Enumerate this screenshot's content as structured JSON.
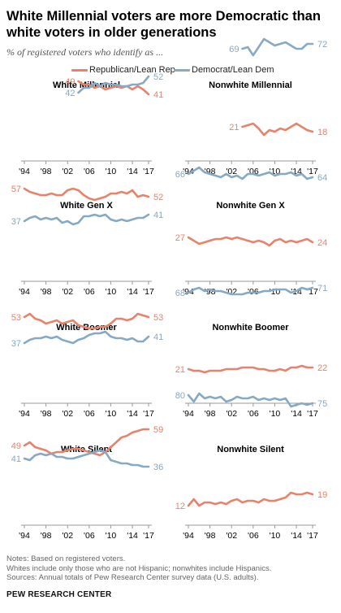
{
  "title": "White Millennial voters are more Democratic than white voters in older generations",
  "subtitle": "% of registered voters who identify as ...",
  "legend": {
    "rep_label": "Republican/Lean Rep",
    "dem_label": "Democrat/Lean Dem"
  },
  "colors": {
    "rep": "#e8836b",
    "dem": "#86a9c6",
    "axis": "#999999",
    "tick_text": "#000000"
  },
  "notes": [
    "Notes: Based on registered voters.",
    "Whites include only those who are not Hispanic; nonwhites include Hispanics.",
    "Sources: Annual totals of Pew Research Center survey data (U.S. adults)."
  ],
  "source_org": "PEW RESEARCH CENTER",
  "x_tick_labels": [
    "'94",
    "'98",
    "'02",
    "'06",
    "'10",
    "'14",
    "'17"
  ],
  "chart_data": [
    {
      "type": "line",
      "title": "White Millennial",
      "x": [
        2004,
        2005,
        2006,
        2007,
        2008,
        2009,
        2010,
        2011,
        2012,
        2013,
        2014,
        2015,
        2016,
        2017
      ],
      "xlim": [
        1994,
        2017
      ],
      "series": [
        {
          "name": "Republican/Lean Rep",
          "values": [
            49,
            47,
            47,
            45,
            46,
            44,
            45,
            46,
            45,
            46,
            44,
            46,
            44,
            41
          ],
          "start_label": "49",
          "end_label": "41"
        },
        {
          "name": "Democrat/Lean Dem",
          "values": [
            42,
            45,
            45,
            48,
            46,
            48,
            47,
            47,
            46,
            46,
            47,
            47,
            48,
            52
          ],
          "start_label": "42",
          "end_label": "52"
        }
      ]
    },
    {
      "type": "line",
      "title": "Nonwhite Millennial",
      "x": [
        2004,
        2005,
        2006,
        2007,
        2008,
        2009,
        2010,
        2011,
        2012,
        2013,
        2014,
        2015,
        2016,
        2017
      ],
      "xlim": [
        1994,
        2017
      ],
      "series": [
        {
          "name": "Republican/Lean Rep",
          "values": [
            21,
            22,
            23,
            20,
            16,
            19,
            18,
            20,
            19,
            21,
            23,
            21,
            19,
            18
          ],
          "start_label": "21",
          "end_label": "18"
        },
        {
          "name": "Democrat/Lean Dem",
          "values": [
            69,
            70,
            65,
            70,
            75,
            73,
            71,
            72,
            73,
            71,
            69,
            69,
            72,
            72
          ],
          "start_label": "69",
          "end_label": "72"
        }
      ]
    },
    {
      "type": "line",
      "title": "White Gen X",
      "x": [
        1994,
        1995,
        1996,
        1997,
        1998,
        1999,
        2000,
        2001,
        2002,
        2003,
        2004,
        2005,
        2006,
        2007,
        2008,
        2009,
        2010,
        2011,
        2012,
        2013,
        2014,
        2015,
        2016,
        2017
      ],
      "xlim": [
        1994,
        2017
      ],
      "series": [
        {
          "name": "Republican/Lean Rep",
          "values": [
            57,
            55,
            54,
            53,
            53,
            54,
            53,
            53,
            56,
            57,
            56,
            53,
            51,
            50,
            51,
            52,
            54,
            54,
            55,
            54,
            56,
            52,
            53,
            52
          ],
          "start_label": "57",
          "end_label": "52"
        },
        {
          "name": "Democrat/Lean Dem",
          "values": [
            37,
            39,
            40,
            38,
            39,
            38,
            39,
            36,
            37,
            35,
            36,
            40,
            40,
            41,
            40,
            41,
            38,
            37,
            38,
            37,
            38,
            39,
            39,
            41
          ],
          "start_label": "37",
          "end_label": "41"
        }
      ]
    },
    {
      "type": "line",
      "title": "Nonwhite Gen X",
      "x": [
        1994,
        1995,
        1996,
        1997,
        1998,
        1999,
        2000,
        2001,
        2002,
        2003,
        2004,
        2005,
        2006,
        2007,
        2008,
        2009,
        2010,
        2011,
        2012,
        2013,
        2014,
        2015,
        2016,
        2017
      ],
      "xlim": [
        1994,
        2017
      ],
      "series": [
        {
          "name": "Republican/Lean Rep",
          "values": [
            27,
            25,
            23,
            24,
            25,
            26,
            26,
            27,
            26,
            27,
            26,
            25,
            24,
            25,
            24,
            22,
            25,
            26,
            24,
            25,
            24,
            25,
            26,
            24
          ],
          "start_label": "27",
          "end_label": "24"
        },
        {
          "name": "Democrat/Lean Dem",
          "values": [
            66,
            68,
            70,
            67,
            66,
            65,
            64,
            66,
            64,
            65,
            63,
            66,
            66,
            65,
            66,
            67,
            65,
            66,
            66,
            67,
            65,
            66,
            63,
            64
          ],
          "start_label": "66",
          "end_label": "64"
        }
      ]
    },
    {
      "type": "line",
      "title": "White Boomer",
      "x": [
        1994,
        1995,
        1996,
        1997,
        1998,
        1999,
        2000,
        2001,
        2002,
        2003,
        2004,
        2005,
        2006,
        2007,
        2008,
        2009,
        2010,
        2011,
        2012,
        2013,
        2014,
        2015,
        2016,
        2017
      ],
      "xlim": [
        1994,
        2017
      ],
      "series": [
        {
          "name": "Republican/Lean Rep",
          "values": [
            53,
            55,
            52,
            51,
            49,
            50,
            51,
            49,
            50,
            51,
            48,
            47,
            46,
            46,
            47,
            47,
            49,
            52,
            52,
            51,
            52,
            55,
            54,
            53
          ],
          "start_label": "53",
          "end_label": "53"
        },
        {
          "name": "Democrat/Lean Dem",
          "values": [
            37,
            39,
            40,
            40,
            41,
            40,
            41,
            39,
            38,
            37,
            39,
            40,
            42,
            43,
            43,
            44,
            41,
            40,
            40,
            39,
            40,
            38,
            38,
            41
          ],
          "start_label": "37",
          "end_label": "41"
        }
      ]
    },
    {
      "type": "line",
      "title": "Nonwhite Boomer",
      "x": [
        1994,
        1995,
        1996,
        1997,
        1998,
        1999,
        2000,
        2001,
        2002,
        2003,
        2004,
        2005,
        2006,
        2007,
        2008,
        2009,
        2010,
        2011,
        2012,
        2013,
        2014,
        2015,
        2016,
        2017
      ],
      "xlim": [
        1994,
        2017
      ],
      "series": [
        {
          "name": "Republican/Lean Rep",
          "values": [
            21,
            20,
            20,
            19,
            20,
            20,
            20,
            21,
            21,
            21,
            22,
            22,
            22,
            21,
            21,
            20,
            20,
            21,
            20,
            22,
            22,
            23,
            22,
            22
          ],
          "start_label": "21",
          "end_label": "22"
        },
        {
          "name": "Democrat/Lean Dem",
          "values": [
            68,
            70,
            71,
            69,
            70,
            69,
            69,
            68,
            67,
            67,
            67,
            68,
            68,
            68,
            69,
            69,
            70,
            70,
            70,
            68,
            69,
            71,
            70,
            71
          ],
          "start_label": "68",
          "end_label": "71"
        }
      ]
    },
    {
      "type": "line",
      "title": "White Silent",
      "x": [
        1994,
        1995,
        1996,
        1997,
        1998,
        1999,
        2000,
        2001,
        2002,
        2003,
        2004,
        2005,
        2006,
        2007,
        2008,
        2009,
        2010,
        2011,
        2012,
        2013,
        2014,
        2015,
        2016,
        2017
      ],
      "xlim": [
        1994,
        2017
      ],
      "series": [
        {
          "name": "Republican/Lean Rep",
          "values": [
            49,
            51,
            48,
            47,
            46,
            44,
            45,
            45,
            46,
            47,
            47,
            46,
            45,
            44,
            43,
            45,
            48,
            51,
            54,
            55,
            57,
            58,
            59,
            59
          ],
          "start_label": "49",
          "end_label": "59"
        },
        {
          "name": "Democrat/Lean Dem",
          "values": [
            41,
            40,
            43,
            44,
            43,
            44,
            42,
            42,
            41,
            41,
            42,
            43,
            44,
            45,
            46,
            45,
            40,
            39,
            38,
            38,
            37,
            37,
            36,
            36
          ],
          "start_label": "41",
          "end_label": "36"
        }
      ]
    },
    {
      "type": "line",
      "title": "Nonwhite Silent",
      "x": [
        1994,
        1995,
        1996,
        1997,
        1998,
        1999,
        2000,
        2001,
        2002,
        2003,
        2004,
        2005,
        2006,
        2007,
        2008,
        2009,
        2010,
        2011,
        2012,
        2013,
        2014,
        2015,
        2016,
        2017
      ],
      "xlim": [
        1994,
        2017
      ],
      "series": [
        {
          "name": "Republican/Lean Rep",
          "values": [
            12,
            16,
            12,
            14,
            14,
            13,
            14,
            13,
            15,
            16,
            14,
            15,
            15,
            14,
            16,
            15,
            15,
            16,
            17,
            20,
            19,
            19,
            20,
            19
          ],
          "start_label": "12",
          "end_label": "19"
        },
        {
          "name": "Democrat/Lean Dem",
          "values": [
            80,
            76,
            81,
            78,
            79,
            78,
            79,
            76,
            77,
            79,
            78,
            78,
            79,
            77,
            78,
            77,
            78,
            77,
            78,
            73,
            74,
            75,
            74,
            75
          ],
          "start_label": "80",
          "end_label": "75"
        }
      ]
    }
  ]
}
